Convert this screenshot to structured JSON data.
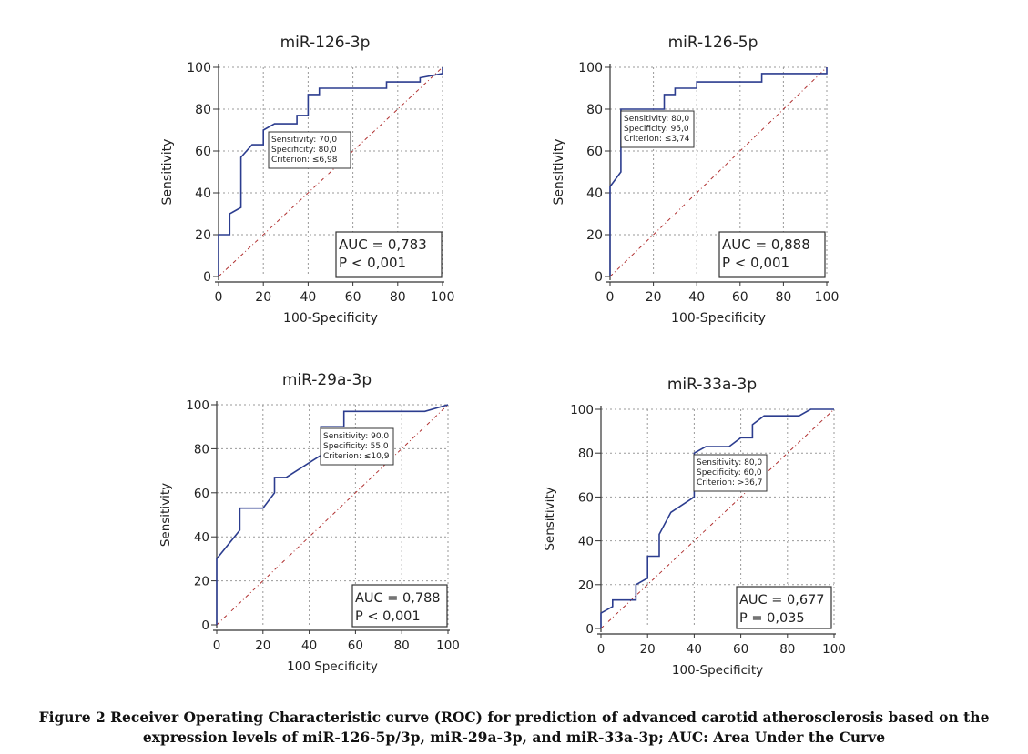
{
  "chart_data": [
    {
      "type": "line",
      "title": "miR-126-3p",
      "xlabel": "100-Specificity",
      "ylabel": "Sensitivity",
      "xlim": [
        0,
        100
      ],
      "ylim": [
        0,
        100
      ],
      "xticks": [
        "0",
        "20",
        "40",
        "60",
        "80",
        "100"
      ],
      "yticks": [
        "0",
        "20",
        "40",
        "60",
        "80",
        "100"
      ],
      "grid": true,
      "roc": [
        [
          0,
          0
        ],
        [
          0,
          20
        ],
        [
          5,
          20
        ],
        [
          5,
          30
        ],
        [
          10,
          33
        ],
        [
          10,
          57
        ],
        [
          15,
          63
        ],
        [
          20,
          63
        ],
        [
          20,
          70
        ],
        [
          25,
          73
        ],
        [
          35,
          73
        ],
        [
          35,
          77
        ],
        [
          40,
          77
        ],
        [
          40,
          87
        ],
        [
          45,
          87
        ],
        [
          45,
          90
        ],
        [
          75,
          90
        ],
        [
          75,
          93
        ],
        [
          90,
          93
        ],
        [
          90,
          95
        ],
        [
          100,
          97
        ],
        [
          100,
          100
        ]
      ],
      "diagonal": [
        [
          0,
          0
        ],
        [
          100,
          100
        ]
      ],
      "criterion_point": [
        20,
        70
      ],
      "annotation": [
        "Sensitivity: 70,0",
        "Specificity: 80,0",
        "Criterion: ≤6,98"
      ],
      "stats": [
        "AUC = 0,783",
        "P < 0,001"
      ]
    },
    {
      "type": "line",
      "title": "miR-126-5p",
      "xlabel": "100-Specificity",
      "ylabel": "Sensitivity",
      "xlim": [
        0,
        100
      ],
      "ylim": [
        0,
        100
      ],
      "xticks": [
        "0",
        "20",
        "40",
        "60",
        "80",
        "100"
      ],
      "yticks": [
        "0",
        "20",
        "40",
        "60",
        "80",
        "100"
      ],
      "grid": true,
      "roc": [
        [
          0,
          0
        ],
        [
          0,
          43
        ],
        [
          5,
          50
        ],
        [
          5,
          80
        ],
        [
          25,
          80
        ],
        [
          25,
          87
        ],
        [
          30,
          87
        ],
        [
          30,
          90
        ],
        [
          40,
          90
        ],
        [
          40,
          93
        ],
        [
          70,
          93
        ],
        [
          70,
          97
        ],
        [
          100,
          97
        ],
        [
          100,
          100
        ]
      ],
      "diagonal": [
        [
          0,
          0
        ],
        [
          100,
          100
        ]
      ],
      "criterion_point": [
        5,
        80
      ],
      "annotation": [
        "Sensitivity: 80,0",
        "Specificity: 95,0",
        "Criterion: ≤3,74"
      ],
      "stats": [
        "AUC = 0,888",
        "P < 0,001"
      ]
    },
    {
      "type": "line",
      "title": "miR-29a-3p",
      "xlabel": "100 Specificity",
      "ylabel": "Sensitivity",
      "xlim": [
        0,
        100
      ],
      "ylim": [
        0,
        100
      ],
      "xticks": [
        "0",
        "20",
        "40",
        "60",
        "80",
        "100"
      ],
      "yticks": [
        "0",
        "20",
        "40",
        "60",
        "80",
        "100"
      ],
      "grid": true,
      "roc": [
        [
          0,
          0
        ],
        [
          0,
          30
        ],
        [
          10,
          43
        ],
        [
          10,
          53
        ],
        [
          20,
          53
        ],
        [
          25,
          60
        ],
        [
          25,
          67
        ],
        [
          30,
          67
        ],
        [
          45,
          77
        ],
        [
          45,
          90
        ],
        [
          55,
          90
        ],
        [
          55,
          97
        ],
        [
          90,
          97
        ],
        [
          100,
          100
        ]
      ],
      "diagonal": [
        [
          0,
          0
        ],
        [
          100,
          100
        ]
      ],
      "criterion_point": [
        45,
        90
      ],
      "annotation": [
        "Sensitivity: 90,0",
        "Specificity: 55,0",
        "Criterion: ≤10,9"
      ],
      "stats": [
        "AUC = 0,788",
        "P < 0,001"
      ]
    },
    {
      "type": "line",
      "title": "miR-33a-3p",
      "xlabel": "100-Specificity",
      "ylabel": "Sensitivity",
      "xlim": [
        0,
        100
      ],
      "ylim": [
        0,
        100
      ],
      "xticks": [
        "0",
        "20",
        "40",
        "60",
        "80",
        "100"
      ],
      "yticks": [
        "0",
        "20",
        "40",
        "60",
        "80",
        "100"
      ],
      "grid": true,
      "roc": [
        [
          0,
          0
        ],
        [
          0,
          7
        ],
        [
          5,
          10
        ],
        [
          5,
          13
        ],
        [
          15,
          13
        ],
        [
          15,
          20
        ],
        [
          20,
          23
        ],
        [
          20,
          33
        ],
        [
          25,
          33
        ],
        [
          25,
          43
        ],
        [
          30,
          53
        ],
        [
          40,
          60
        ],
        [
          40,
          80
        ],
        [
          45,
          83
        ],
        [
          55,
          83
        ],
        [
          60,
          87
        ],
        [
          65,
          87
        ],
        [
          65,
          93
        ],
        [
          70,
          97
        ],
        [
          85,
          97
        ],
        [
          90,
          100
        ],
        [
          100,
          100
        ]
      ],
      "diagonal": [
        [
          0,
          0
        ],
        [
          100,
          100
        ]
      ],
      "criterion_point": [
        40,
        80
      ],
      "annotation": [
        "Sensitivity: 80,0",
        "Specificity: 60,0",
        "Criterion: >36,7"
      ],
      "stats": [
        "AUC = 0,677",
        "P = 0,035"
      ]
    }
  ],
  "caption": {
    "line1": "Figure 2 Receiver Operating Characteristic curve (ROC) for prediction of advanced carotid atherosclerosis based on the",
    "line2": "expression levels of miR-126-5p/3p, miR-29a-3p, and miR-33a-3p; AUC: Area Under the Curve"
  }
}
